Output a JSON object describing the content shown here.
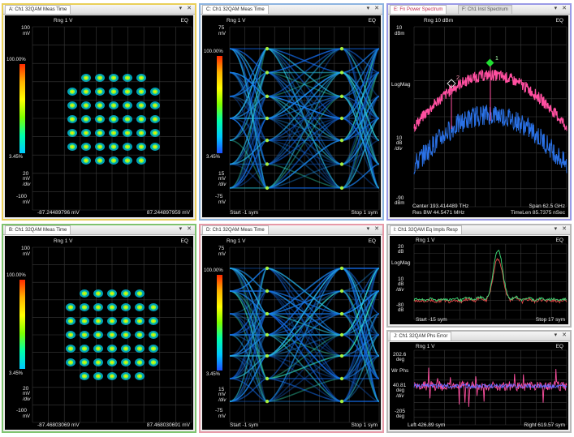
{
  "windows": {
    "a": {
      "tab": "A: Ch1 32QAM Meas Time",
      "range": "Rng 1  V",
      "eq": "EQ",
      "y_top": "100",
      "y_top_unit": "mV",
      "scale": "20",
      "scale_u1": "mV",
      "scale_u2": "/div",
      "y_bot": "-100",
      "y_bot_unit": "mV",
      "x_left": "-87.24489796 mV",
      "x_right": "87.244897959 mV",
      "color_max": "100.00%",
      "color_min": "3.45%"
    },
    "b": {
      "tab": "B: Ch1 32QAM Meas Time",
      "range": "Rng 1  V",
      "eq": "EQ",
      "y_top": "100",
      "y_top_unit": "mV",
      "scale": "20",
      "scale_u1": "mV",
      "scale_u2": "/div",
      "y_bot": "-100",
      "y_bot_unit": "mV",
      "x_left": "-87.46803069 mV",
      "x_right": "87.468030691 mV",
      "color_max": "100.00%",
      "color_min": "3.45%"
    },
    "c": {
      "tab": "C: Ch1 32QAM Meas Time",
      "range": "Rng 1  V",
      "eq": "EQ",
      "y_top": "75",
      "y_top_unit": "mV",
      "scale": "15",
      "scale_u1": "mV",
      "scale_u2": "/div",
      "y_bot": "-75",
      "y_bot_unit": "mV",
      "x_left": "Start -1  sym",
      "x_right": "Stop 1  sym",
      "color_max": "100.00%",
      "color_min": "3.45%"
    },
    "d": {
      "tab": "D: Ch1 32QAM Meas Time",
      "range": "Rng 1  V",
      "eq": "EQ",
      "y_top": "75",
      "y_top_unit": "mV",
      "scale": "15",
      "scale_u1": "mV",
      "scale_u2": "/div",
      "y_bot": "-75",
      "y_bot_unit": "mV",
      "x_left": "Start -1  sym",
      "x_right": "Stop 1  sym",
      "color_max": "100.00%",
      "color_min": "3.45%"
    },
    "e": {
      "tab": "E: Fn Power Spectrum",
      "tab2": "F: Ch1 Inst Spectrum",
      "range": "Rng 10  dBm",
      "eq": "EQ",
      "y_top": "10",
      "y_top_unit": "dBm",
      "mid": "LogMag",
      "scale": "10",
      "scale_u1": "dB",
      "scale_u2": "/div",
      "y_bot": "-90",
      "y_bot_unit": "dBm",
      "center": "Center 193.414489 THz",
      "span": "Span 62.5 GHz",
      "resbw": "Res BW 44.5471 MHz",
      "timelen": "TimeLen 85.7375 nSec",
      "marker1": "1",
      "marker2": "2"
    },
    "f": {
      "tab": "I: Ch1 32QAM Eq Impls Resp",
      "range": "Rng 1  V",
      "eq": "EQ",
      "y_top": "20",
      "y_top_unit": "dB",
      "mid": "LogMag",
      "scale": "10",
      "scale_u1": "dB",
      "scale_u2": "/div",
      "y_bot": "-80",
      "y_bot_unit": "dB",
      "x_left": "Start -15  sym",
      "x_right": "Stop 17  sym"
    },
    "g": {
      "tab": "J: Ch1 32QAM Phs Error",
      "range": "Rng 1  V",
      "eq": "EQ",
      "y_top": "202.6",
      "y_top_unit": "deg",
      "mid": "Wr Phs",
      "scale": "40.81",
      "scale_u1": "deg",
      "scale_u2": "/div",
      "y_bot": "-205",
      "y_bot_unit": "deg",
      "x_left": "Left 426.89  sym",
      "x_right": "Right 619.57  sym"
    }
  },
  "window_buttons": "▾ ✕",
  "colors": {
    "grid": "#3a3a3a",
    "pink": "#ff4fa0",
    "blue": "#2f7dff",
    "marker_green": "#22dd33",
    "impulse_green": "#3fe07a",
    "impulse_red": "#e04848"
  }
}
